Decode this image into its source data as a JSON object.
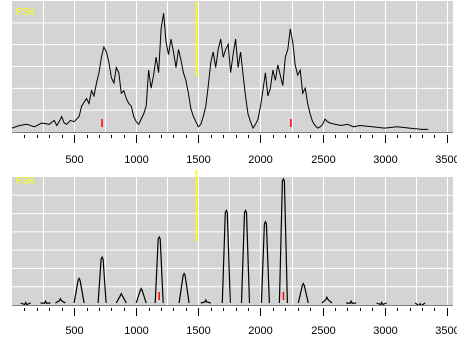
{
  "chart_data": [
    {
      "type": "line",
      "title": "FSK",
      "xlabel": "",
      "ylabel": "",
      "xlim": [
        0,
        3550
      ],
      "x_ticks": [
        500,
        1000,
        1500,
        2000,
        2500,
        3000,
        3500
      ],
      "x_tick_labels": [
        "500",
        "1000",
        "1500",
        "2000",
        "2500",
        "3000",
        "3500"
      ],
      "grid": true,
      "background_color": "#d4d4d4",
      "grid_color": "#ffffff",
      "line_color": "#000000",
      "title_color": "#ffff00",
      "markers": [
        {
          "x": 1485,
          "color": "#ffff00",
          "kind": "center-line"
        },
        {
          "x": 725,
          "color": "#ff0000",
          "kind": "tone-marker"
        },
        {
          "x": 2245,
          "color": "#ff0000",
          "kind": "tone-marker"
        }
      ],
      "series": [
        {
          "x": [
            0,
            60,
            120,
            180,
            240,
            300,
            340,
            360,
            380,
            400,
            420,
            440,
            470,
            500,
            540,
            560,
            600,
            620,
            640,
            660,
            680,
            700,
            720,
            740,
            760,
            780,
            800,
            820,
            840,
            860,
            880,
            900,
            920,
            940,
            960,
            980,
            1000,
            1020,
            1040,
            1060,
            1080,
            1100,
            1120,
            1140,
            1160,
            1180,
            1200,
            1220,
            1240,
            1260,
            1280,
            1300,
            1320,
            1340,
            1360,
            1380,
            1400,
            1420,
            1440,
            1460,
            1480,
            1500,
            1520,
            1540,
            1560,
            1580,
            1600,
            1620,
            1640,
            1660,
            1680,
            1700,
            1720,
            1740,
            1760,
            1780,
            1800,
            1820,
            1840,
            1860,
            1880,
            1900,
            1920,
            1940,
            1960,
            1980,
            2000,
            2020,
            2040,
            2060,
            2080,
            2100,
            2120,
            2140,
            2160,
            2180,
            2200,
            2220,
            2240,
            2260,
            2280,
            2300,
            2320,
            2340,
            2360,
            2380,
            2400,
            2420,
            2440,
            2460,
            2480,
            2500,
            2520,
            2540,
            2560,
            2600,
            2650,
            2700,
            2750,
            2800,
            2900,
            3000,
            3100,
            3200,
            3300,
            3350
          ],
          "y": [
            3,
            5,
            6,
            4,
            7,
            6,
            9,
            5,
            8,
            12,
            7,
            6,
            9,
            8,
            12,
            20,
            26,
            22,
            32,
            28,
            38,
            46,
            58,
            66,
            62,
            54,
            42,
            38,
            50,
            46,
            30,
            32,
            26,
            22,
            20,
            12,
            8,
            6,
            10,
            14,
            20,
            48,
            34,
            44,
            58,
            46,
            80,
            92,
            70,
            60,
            72,
            62,
            50,
            64,
            56,
            46,
            40,
            30,
            18,
            12,
            8,
            4,
            6,
            12,
            20,
            36,
            54,
            62,
            50,
            64,
            72,
            58,
            64,
            68,
            46,
            60,
            72,
            50,
            62,
            44,
            28,
            14,
            8,
            3,
            6,
            10,
            20,
            32,
            46,
            28,
            34,
            48,
            40,
            52,
            44,
            36,
            58,
            64,
            80,
            70,
            52,
            44,
            48,
            30,
            34,
            22,
            14,
            8,
            5,
            3,
            4,
            6,
            10,
            8,
            7,
            6,
            5,
            6,
            4,
            5,
            4,
            3,
            4,
            3,
            2,
            2
          ]
        }
      ]
    },
    {
      "type": "line",
      "title": "FSK",
      "xlabel": "",
      "ylabel": "",
      "xlim": [
        0,
        3550
      ],
      "x_ticks": [
        500,
        1000,
        1500,
        2000,
        2500,
        3000,
        3500
      ],
      "x_tick_labels": [
        "500",
        "1000",
        "1500",
        "2000",
        "2500",
        "3000",
        "3500"
      ],
      "grid": true,
      "background_color": "#d4d4d4",
      "grid_color": "#ffffff",
      "line_color": "#000000",
      "title_color": "#ffff00",
      "markers": [
        {
          "x": 1485,
          "color": "#ffff00",
          "kind": "center-line"
        },
        {
          "x": 1185,
          "color": "#ff0000",
          "kind": "tone-marker"
        },
        {
          "x": 2185,
          "color": "#ff0000",
          "kind": "tone-marker"
        }
      ],
      "series": [
        {
          "peaks": [
            {
              "x": 110,
              "y": 2
            },
            {
              "x": 270,
              "y": 3
            },
            {
              "x": 390,
              "y": 5
            },
            {
              "x": 540,
              "y": 21
            },
            {
              "x": 725,
              "y": 38
            },
            {
              "x": 880,
              "y": 9
            },
            {
              "x": 1040,
              "y": 13
            },
            {
              "x": 1185,
              "y": 54
            },
            {
              "x": 1385,
              "y": 25
            },
            {
              "x": 1560,
              "y": 4
            },
            {
              "x": 1725,
              "y": 75
            },
            {
              "x": 1880,
              "y": 75
            },
            {
              "x": 2040,
              "y": 66
            },
            {
              "x": 2185,
              "y": 100
            },
            {
              "x": 2345,
              "y": 17
            },
            {
              "x": 2535,
              "y": 6
            },
            {
              "x": 2730,
              "y": 3
            },
            {
              "x": 2975,
              "y": 2
            },
            {
              "x": 3285,
              "y": 1
            }
          ]
        }
      ]
    }
  ]
}
